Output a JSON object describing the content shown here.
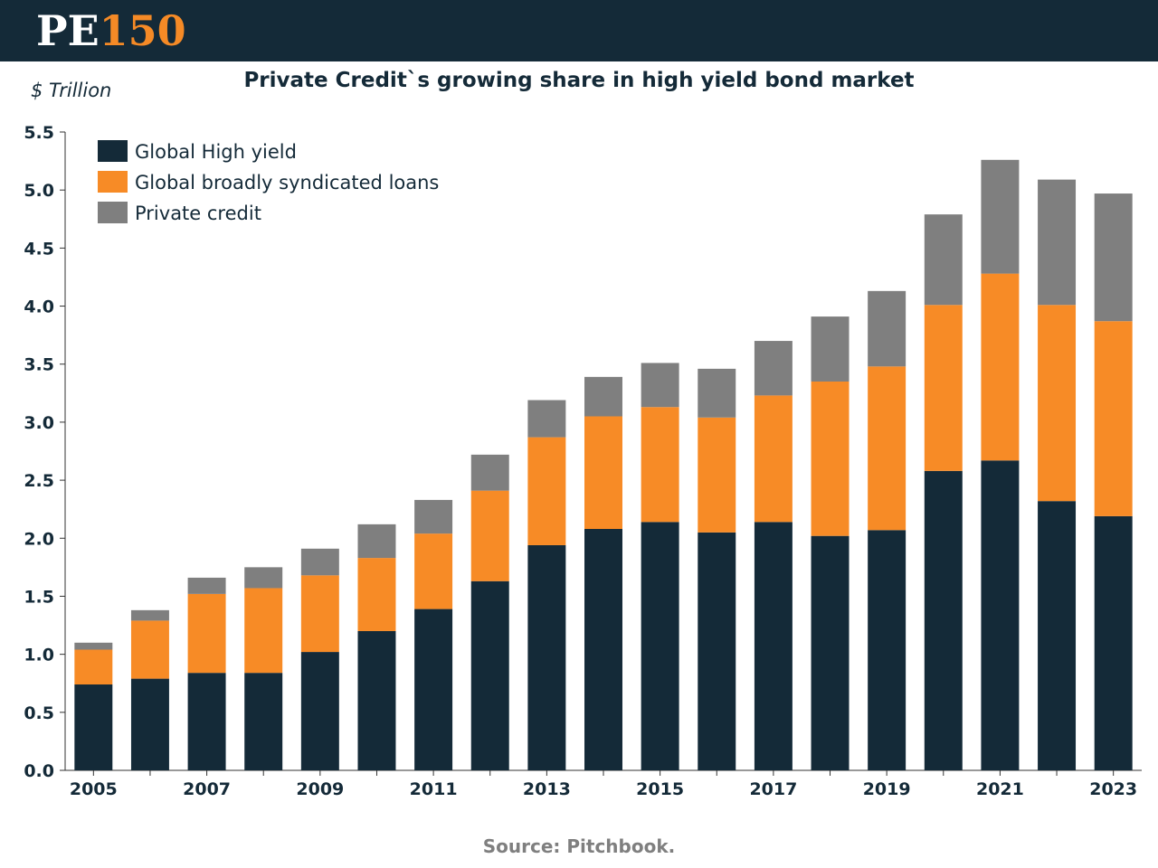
{
  "brand": {
    "logo_part1": "PE",
    "logo_part2": "150"
  },
  "colors": {
    "high_yield": "#142a38",
    "bsl": "#f78b26",
    "private_credit": "#7f7f7f",
    "header_bg": "#142a38",
    "axis": "#333333"
  },
  "source": "Source: Pitchbook.",
  "chart_data": {
    "type": "bar",
    "stacked": true,
    "title": "Private Credit`s growing share in high yield bond market",
    "ylabel": "$ Trillion",
    "ylim": [
      0,
      5.5
    ],
    "yticks": [
      "0.0",
      "0.5",
      "1.0",
      "1.5",
      "2.0",
      "2.5",
      "3.0",
      "3.5",
      "4.0",
      "4.5",
      "5.0",
      "5.5"
    ],
    "categories": [
      "2005",
      "2006",
      "2007",
      "2008",
      "2009",
      "2010",
      "2011",
      "2012",
      "2013",
      "2014",
      "2015",
      "2016",
      "2017",
      "2018",
      "2019",
      "2020",
      "2021",
      "2022",
      "2023"
    ],
    "xtick_labels": [
      "2005",
      "",
      "2007",
      "",
      "2009",
      "",
      "2011",
      "",
      "2013",
      "",
      "2015",
      "",
      "2017",
      "",
      "2019",
      "",
      "2021",
      "",
      "2023"
    ],
    "legend_position": "top-left",
    "series": [
      {
        "name": "Global High yield",
        "values": [
          0.74,
          0.79,
          0.84,
          0.84,
          1.02,
          1.2,
          1.39,
          1.63,
          1.94,
          2.08,
          2.14,
          2.05,
          2.14,
          2.02,
          2.07,
          2.58,
          2.67,
          2.32,
          2.19
        ]
      },
      {
        "name": "Global broadly syndicated loans",
        "values": [
          0.3,
          0.5,
          0.68,
          0.73,
          0.66,
          0.63,
          0.65,
          0.78,
          0.93,
          0.97,
          0.99,
          0.99,
          1.09,
          1.33,
          1.41,
          1.43,
          1.61,
          1.69,
          1.68
        ]
      },
      {
        "name": "Private credit",
        "values": [
          0.06,
          0.09,
          0.14,
          0.18,
          0.23,
          0.29,
          0.29,
          0.31,
          0.32,
          0.34,
          0.38,
          0.42,
          0.47,
          0.56,
          0.65,
          0.78,
          0.98,
          1.08,
          1.1
        ]
      }
    ]
  }
}
